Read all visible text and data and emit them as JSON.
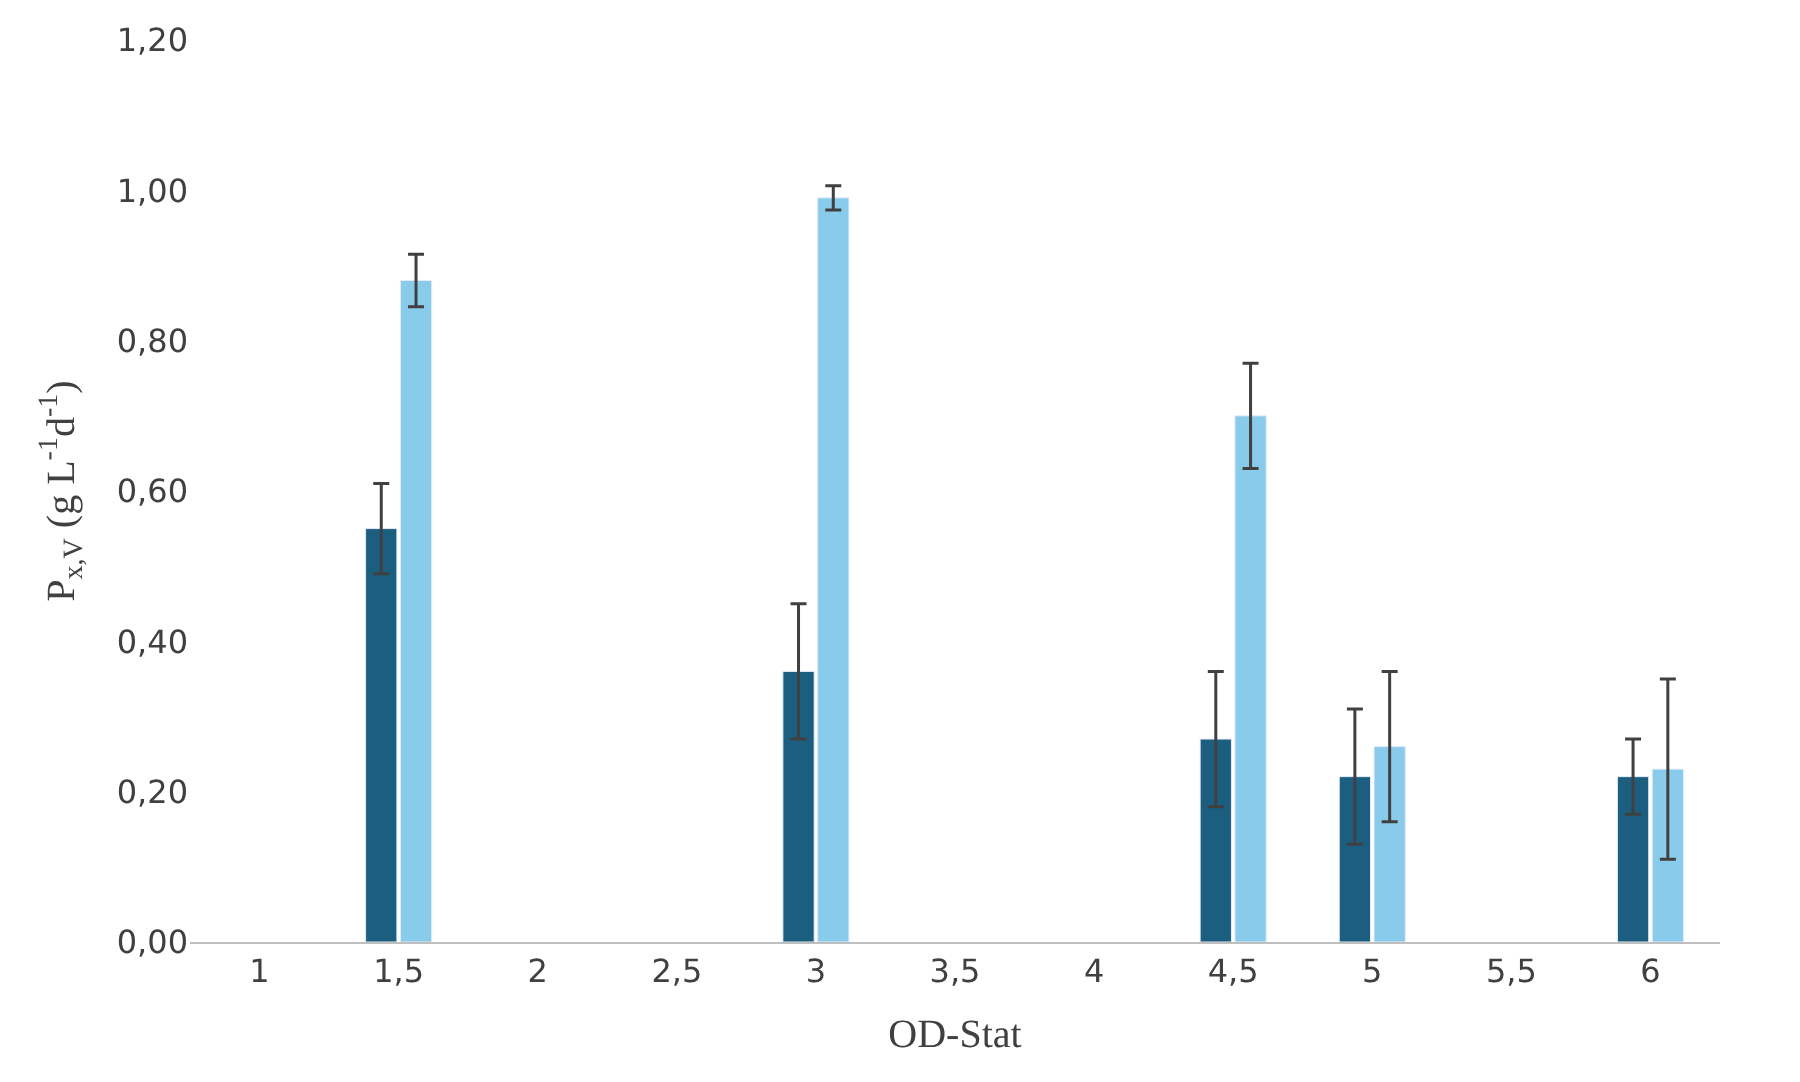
{
  "chart_data": {
    "type": "bar",
    "xlabel": "OD-Stat",
    "ylabel": "P$_{x,V}$ (g L$^{-1}$d$^{-1}$)",
    "categories": [
      "1",
      "1,5",
      "2",
      "2,5",
      "3",
      "3,5",
      "4",
      "4,5",
      "5",
      "5,5",
      "6"
    ],
    "series": [
      {
        "color": "#1b5e80",
        "values": [
          null,
          0.55,
          null,
          null,
          0.36,
          null,
          null,
          0.27,
          0.22,
          null,
          0.22
        ],
        "errors": [
          null,
          0.06,
          null,
          null,
          0.09,
          null,
          null,
          0.09,
          0.09,
          null,
          0.05
        ]
      },
      {
        "color": "#89cbea",
        "values": [
          null,
          0.88,
          null,
          null,
          0.99,
          null,
          null,
          0.7,
          0.26,
          null,
          0.23
        ],
        "errors": [
          null,
          0.035,
          null,
          null,
          0.016,
          null,
          null,
          0.07,
          0.1,
          null,
          0.12
        ]
      }
    ],
    "ylim": [
      0,
      1.2
    ],
    "yticks": [
      {
        "value": 0,
        "label": "0,00"
      },
      {
        "value": 0.2,
        "label": "0,20"
      },
      {
        "value": 0.4,
        "label": "0,40"
      },
      {
        "value": 0.6,
        "label": "0,60"
      },
      {
        "value": 0.8,
        "label": "0,80"
      },
      {
        "value": 1.0,
        "label": "1,00"
      },
      {
        "value": 1.2,
        "label": "1,20"
      }
    ]
  }
}
